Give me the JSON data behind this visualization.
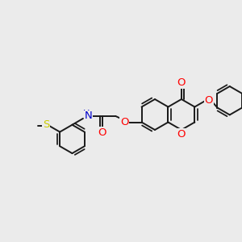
{
  "bg_color": "#ebebeb",
  "bond_color": "#1a1a1a",
  "bond_width": 1.4,
  "atom_colors": {
    "O": "#ff0000",
    "N": "#0000cc",
    "S": "#cccc00",
    "C": "#1a1a1a"
  },
  "font_size": 8.5,
  "figsize": [
    3.0,
    3.0
  ],
  "dpi": 100,
  "bl": 19
}
